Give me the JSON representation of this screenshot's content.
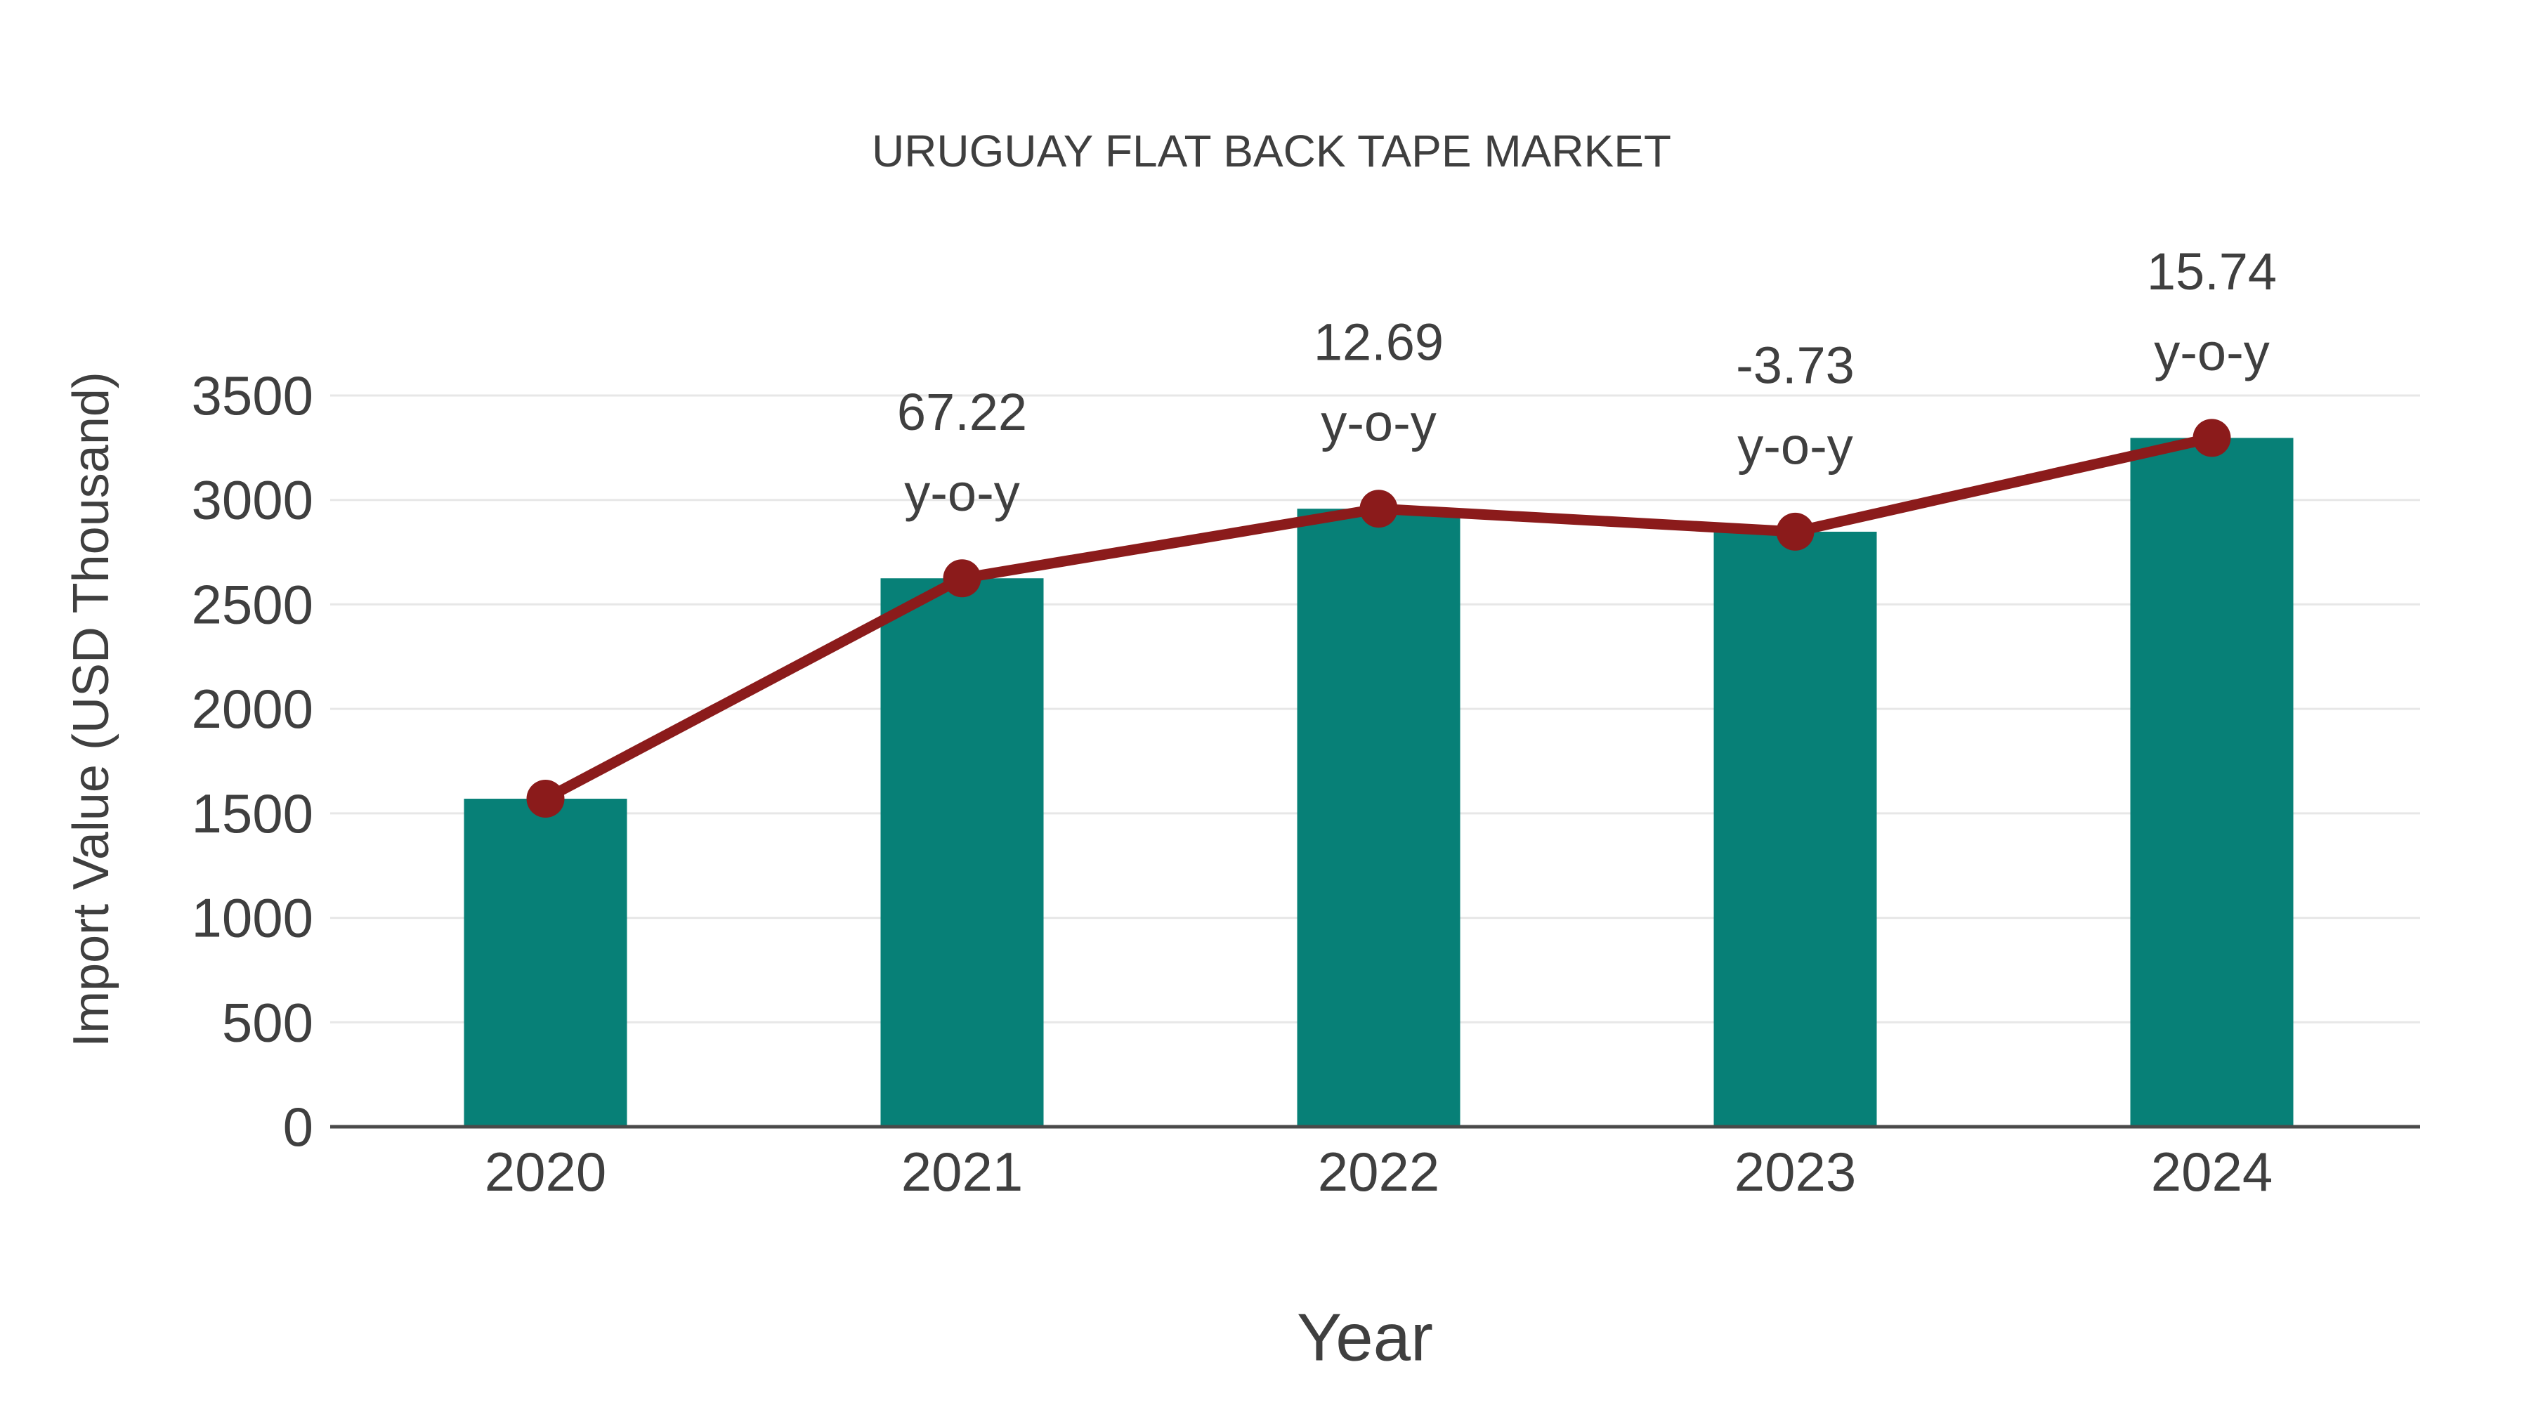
{
  "title": "URUGUAY FLAT BACK TAPE MARKET",
  "colors": {
    "bar": "#078077",
    "line": "#8B1B1B",
    "marker": "#8B1B1B",
    "text": "#3F3F3F",
    "gridline": "#E7E7E7",
    "axis_line": "#4A4A4A",
    "background": "#FFFFFF"
  },
  "chart_data": {
    "type": "bar",
    "title": "URUGUAY FLAT BACK TAPE MARKET",
    "categories": [
      "2020",
      "2021",
      "2022",
      "2023",
      "2024"
    ],
    "series": [
      {
        "name": "Import Value",
        "type": "bar",
        "color": "#078077",
        "values": [
          1570,
          2625,
          2958,
          2848,
          3297
        ]
      },
      {
        "name": "y-o-y trend line",
        "type": "line",
        "color": "#8B1B1B",
        "values": [
          1570,
          2625,
          2958,
          2848,
          3297
        ],
        "yoy_percent": [
          null,
          67.22,
          12.69,
          -3.73,
          15.74
        ]
      }
    ],
    "annotations": [
      {
        "category": "2021",
        "line1": "67.22",
        "line2": "y-o-y"
      },
      {
        "category": "2022",
        "line1": "12.69",
        "line2": "y-o-y"
      },
      {
        "category": "2023",
        "line1": "-3.73",
        "line2": "y-o-y"
      },
      {
        "category": "2024",
        "line1": "15.74",
        "line2": "y-o-y"
      }
    ],
    "xlabel": "Year",
    "ylabel": "Import Value (USD Thousand)",
    "ylim": [
      0,
      3500
    ],
    "yticks": [
      0,
      500,
      1000,
      1500,
      2000,
      2500,
      3000,
      3500
    ],
    "grid": true,
    "legend_position": "none"
  }
}
